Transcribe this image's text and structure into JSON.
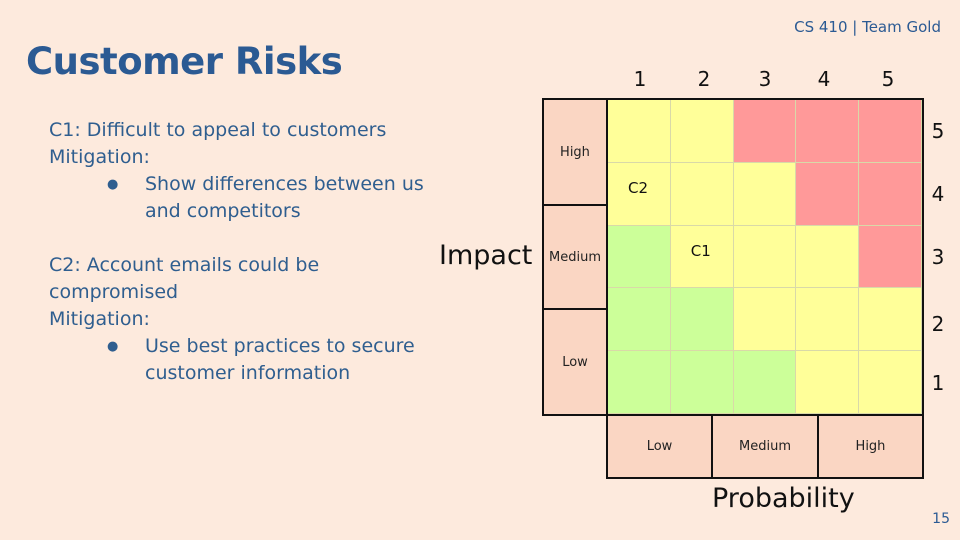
{
  "header": {
    "tag": "CS 410 | Team Gold"
  },
  "title": "Customer Risks",
  "risks": [
    {
      "heading": "C1: Difficult to appeal to customers",
      "mitigation_label": "Mitigation:",
      "bullet": "Show differences between us and competitors"
    },
    {
      "heading": "C2: Account emails could be compromised",
      "mitigation_label": "Mitigation:",
      "bullet": "Use best practices to secure customer information"
    }
  ],
  "matrix": {
    "impact_label": "Impact",
    "probability_label": "Probability",
    "top_numbers": [
      "1",
      "2",
      "3",
      "4",
      "5"
    ],
    "right_numbers": [
      "5",
      "4",
      "3",
      "2",
      "1"
    ],
    "impact_levels": [
      "High",
      "Medium",
      "Low"
    ],
    "probability_levels": [
      "Low",
      "Medium",
      "High"
    ],
    "colors": {
      "green": "#ccff99",
      "yellow": "#ffff99",
      "red": "#ff9999"
    },
    "cells": [
      [
        "yellow",
        "yellow",
        "red",
        "red",
        "red"
      ],
      [
        "yellow",
        "yellow",
        "yellow",
        "red",
        "red"
      ],
      [
        "green",
        "yellow",
        "yellow",
        "yellow",
        "red"
      ],
      [
        "green",
        "green",
        "yellow",
        "yellow",
        "yellow"
      ],
      [
        "green",
        "green",
        "green",
        "yellow",
        "yellow"
      ]
    ],
    "marks": [
      {
        "label": "C2",
        "probability": 1,
        "impact": 4
      },
      {
        "label": "C1",
        "probability": 2,
        "impact": 3
      }
    ]
  },
  "page_number": "15"
}
